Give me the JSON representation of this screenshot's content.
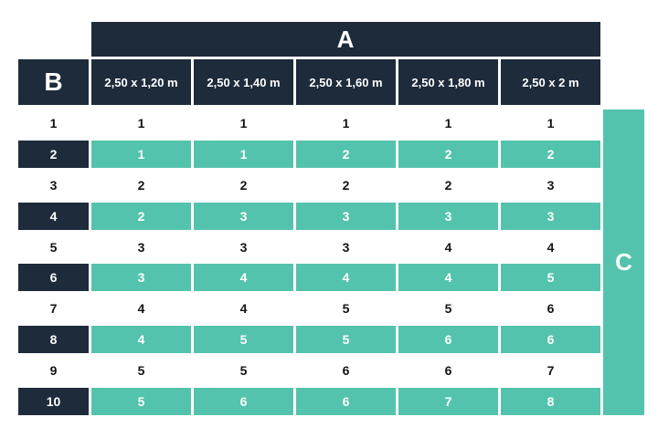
{
  "table": {
    "column_group_label": "A",
    "row_group_label": "B",
    "result_label": "C",
    "columns": [
      "2,50 x 1,20 m",
      "2,50 x 1,40 m",
      "2,50 x 1,60 m",
      "2,50 x 1,80 m",
      "2,50 x 2 m"
    ],
    "rows": [
      {
        "label": "1",
        "highlighted": false,
        "values": [
          "1",
          "1",
          "1",
          "1",
          "1"
        ]
      },
      {
        "label": "2",
        "highlighted": true,
        "values": [
          "1",
          "1",
          "2",
          "2",
          "2"
        ]
      },
      {
        "label": "3",
        "highlighted": false,
        "values": [
          "2",
          "2",
          "2",
          "2",
          "3"
        ]
      },
      {
        "label": "4",
        "highlighted": true,
        "values": [
          "2",
          "3",
          "3",
          "3",
          "3"
        ]
      },
      {
        "label": "5",
        "highlighted": false,
        "values": [
          "3",
          "3",
          "3",
          "4",
          "4"
        ]
      },
      {
        "label": "6",
        "highlighted": true,
        "values": [
          "3",
          "4",
          "4",
          "4",
          "5"
        ]
      },
      {
        "label": "7",
        "highlighted": false,
        "values": [
          "4",
          "4",
          "5",
          "5",
          "6"
        ]
      },
      {
        "label": "8",
        "highlighted": true,
        "values": [
          "4",
          "5",
          "5",
          "6",
          "6"
        ]
      },
      {
        "label": "9",
        "highlighted": false,
        "values": [
          "5",
          "5",
          "6",
          "6",
          "7"
        ]
      },
      {
        "label": "10",
        "highlighted": true,
        "values": [
          "5",
          "6",
          "6",
          "7",
          "8"
        ]
      }
    ]
  },
  "chart_data": {
    "type": "table",
    "title": "",
    "column_group_label": "A",
    "row_group_label": "B",
    "output_label": "C",
    "columns": [
      "2,50 x 1,20 m",
      "2,50 x 1,40 m",
      "2,50 x 1,60 m",
      "2,50 x 1,80 m",
      "2,50 x 2 m"
    ],
    "row_labels": [
      "1",
      "2",
      "3",
      "4",
      "5",
      "6",
      "7",
      "8",
      "9",
      "10"
    ],
    "values": [
      [
        1,
        1,
        1,
        1,
        1
      ],
      [
        1,
        1,
        2,
        2,
        2
      ],
      [
        2,
        2,
        2,
        2,
        3
      ],
      [
        2,
        3,
        3,
        3,
        3
      ],
      [
        3,
        3,
        3,
        4,
        4
      ],
      [
        3,
        4,
        4,
        4,
        5
      ],
      [
        4,
        4,
        5,
        5,
        6
      ],
      [
        4,
        5,
        5,
        6,
        6
      ],
      [
        5,
        5,
        6,
        6,
        7
      ],
      [
        5,
        6,
        6,
        7,
        8
      ]
    ],
    "legend_position": "none",
    "grid": false
  },
  "colors": {
    "navy": "#1D2B3B",
    "teal": "#54C3AD",
    "white": "#FFFFFF",
    "text_dark": "#141414"
  }
}
